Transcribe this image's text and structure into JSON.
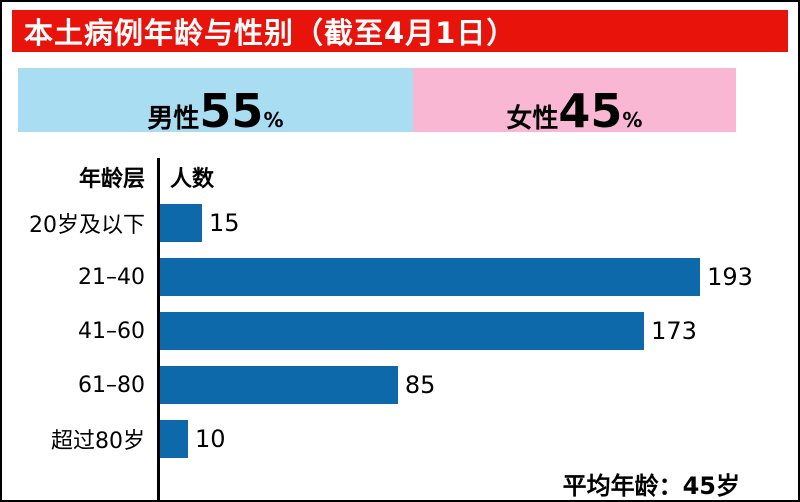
{
  "header": {
    "title": "本土病例年龄与性别（截至4月1日）"
  },
  "gender_bar": {
    "male": {
      "label": "男性",
      "value": "55",
      "unit": "%",
      "pct": 55,
      "color": "#a9def2"
    },
    "female": {
      "label": "女性",
      "value": "45",
      "unit": "%",
      "pct": 45,
      "color": "#f9b7d3"
    }
  },
  "chart_data": {
    "type": "bar",
    "orientation": "horizontal",
    "age_col_header": "年龄层",
    "count_col_header": "人数",
    "categories": [
      "20岁及以下",
      "21–40",
      "41–60",
      "61–80",
      "超过80岁"
    ],
    "values": [
      15,
      193,
      173,
      85,
      10
    ],
    "bar_color": "#0d69a9",
    "xlim": [
      0,
      193
    ],
    "grid": false,
    "legend": false
  },
  "footer": {
    "average_age": "平均年龄：45岁"
  }
}
